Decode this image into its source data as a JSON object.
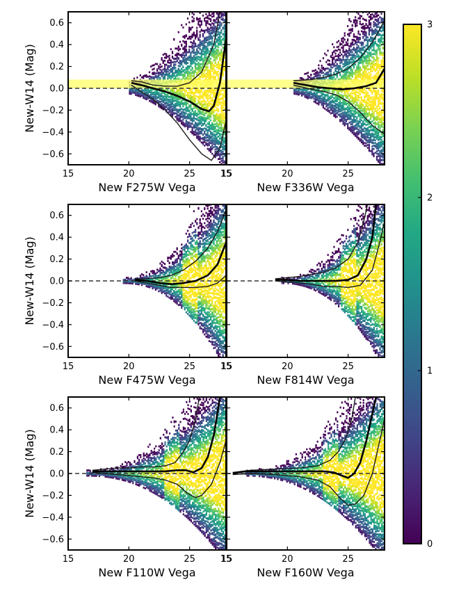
{
  "chart_data": {
    "type": "heatmap",
    "layout": {
      "rows": 3,
      "cols": 2,
      "shared_y": true
    },
    "ylabel": "New-W14 (Mag)",
    "ylim": [
      -0.7,
      0.7
    ],
    "xlim": [
      15,
      28
    ],
    "xticks": [
      15,
      20,
      25
    ],
    "yticks": [
      -0.6,
      -0.4,
      -0.2,
      0.0,
      0.2,
      0.4,
      0.6
    ],
    "ytick_labels": [
      "−0.6",
      "−0.4",
      "−0.2",
      "0.0",
      "0.2",
      "0.4",
      "0.6"
    ],
    "zero_line": {
      "y": 0.0,
      "style": "dashed"
    },
    "colorbar": {
      "range": [
        0,
        3
      ],
      "colormap": "viridis",
      "ticks": [
        0,
        1,
        2,
        3
      ],
      "placement": "right"
    },
    "panels": [
      {
        "xlabel": "New F275W Vega",
        "show_xtick_last": true,
        "data_x_range": [
          20.0,
          28
        ],
        "highlight_band": [
          0.0,
          0.08
        ],
        "percentiles": {
          "median": [
            [
              20.2,
              0.05
            ],
            [
              21,
              0.03
            ],
            [
              22,
              0.0
            ],
            [
              23,
              -0.03
            ],
            [
              24,
              -0.07
            ],
            [
              25,
              -0.12
            ],
            [
              26,
              -0.19
            ],
            [
              26.6,
              -0.21
            ],
            [
              27,
              -0.16
            ],
            [
              27.5,
              0.05
            ],
            [
              28,
              0.45
            ]
          ],
          "upper": [
            [
              20.2,
              0.07
            ],
            [
              21,
              0.06
            ],
            [
              22,
              0.03
            ],
            [
              23,
              0.02
            ],
            [
              24,
              0.02
            ],
            [
              25,
              0.05
            ],
            [
              26,
              0.15
            ],
            [
              27,
              0.4
            ],
            [
              27.5,
              0.7
            ]
          ],
          "lower": [
            [
              20.2,
              0.03
            ],
            [
              21,
              -0.03
            ],
            [
              22,
              -0.1
            ],
            [
              23,
              -0.2
            ],
            [
              24,
              -0.32
            ],
            [
              25,
              -0.47
            ],
            [
              26,
              -0.6
            ],
            [
              26.8,
              -0.66
            ],
            [
              27.5,
              -0.55
            ],
            [
              28,
              -0.3
            ]
          ]
        }
      },
      {
        "xlabel": "New F336W Vega",
        "show_xtick_last": false,
        "data_x_range": [
          20.5,
          28
        ],
        "highlight_band": [
          0.0,
          0.08
        ],
        "percentiles": {
          "median": [
            [
              20.5,
              0.05
            ],
            [
              21.5,
              0.03
            ],
            [
              22.5,
              0.01
            ],
            [
              23.5,
              0.0
            ],
            [
              24.5,
              -0.01
            ],
            [
              25.5,
              0.0
            ],
            [
              26.5,
              0.02
            ],
            [
              27.3,
              0.05
            ],
            [
              28,
              0.18
            ]
          ],
          "upper": [
            [
              20.5,
              0.07
            ],
            [
              22,
              0.08
            ],
            [
              23,
              0.1
            ],
            [
              24,
              0.13
            ],
            [
              25,
              0.18
            ],
            [
              26,
              0.28
            ],
            [
              27,
              0.42
            ],
            [
              28,
              0.62
            ]
          ],
          "lower": [
            [
              20.5,
              0.03
            ],
            [
              22,
              -0.01
            ],
            [
              23,
              -0.03
            ],
            [
              24,
              -0.06
            ],
            [
              25,
              -0.12
            ],
            [
              26,
              -0.22
            ],
            [
              27,
              -0.34
            ],
            [
              28,
              -0.42
            ]
          ]
        }
      },
      {
        "xlabel": "New F475W Vega",
        "show_xtick_last": true,
        "data_x_range": [
          15,
          28
        ],
        "percentiles": {
          "median": [
            [
              20.5,
              0.01
            ],
            [
              21.5,
              0.0
            ],
            [
              22.5,
              -0.02
            ],
            [
              23.5,
              -0.03
            ],
            [
              24.5,
              -0.02
            ],
            [
              25.5,
              0.0
            ],
            [
              26.5,
              0.05
            ],
            [
              27.3,
              0.15
            ],
            [
              28,
              0.35
            ]
          ],
          "upper": [
            [
              20.5,
              0.02
            ],
            [
              21.5,
              0.02
            ],
            [
              22.5,
              0.03
            ],
            [
              23.5,
              0.05
            ],
            [
              24.5,
              0.1
            ],
            [
              25.5,
              0.18
            ],
            [
              26.5,
              0.3
            ],
            [
              27.3,
              0.45
            ],
            [
              28,
              0.65
            ]
          ],
          "lower": [
            [
              20.5,
              0.0
            ],
            [
              21.5,
              -0.02
            ],
            [
              22.5,
              -0.04
            ],
            [
              23.5,
              -0.06
            ],
            [
              24.5,
              -0.06
            ],
            [
              25.5,
              -0.06
            ],
            [
              26.5,
              -0.05
            ],
            [
              27.3,
              -0.02
            ],
            [
              28,
              0.05
            ]
          ]
        }
      },
      {
        "xlabel": "New F814W Vega",
        "show_xtick_last": false,
        "data_x_range": [
          15,
          28
        ],
        "percentiles": {
          "median": [
            [
              19,
              0.01
            ],
            [
              20,
              0.01
            ],
            [
              21,
              0.0
            ],
            [
              22,
              0.0
            ],
            [
              23,
              0.0
            ],
            [
              24,
              0.0
            ],
            [
              25,
              0.01
            ],
            [
              25.8,
              0.05
            ],
            [
              26.5,
              0.2
            ],
            [
              27,
              0.4
            ],
            [
              27.3,
              0.7
            ]
          ],
          "upper": [
            [
              19,
              0.02
            ],
            [
              20,
              0.03
            ],
            [
              21,
              0.04
            ],
            [
              22,
              0.06
            ],
            [
              23,
              0.08
            ],
            [
              24,
              0.12
            ],
            [
              25,
              0.2
            ],
            [
              25.8,
              0.35
            ],
            [
              26.3,
              0.55
            ],
            [
              26.6,
              0.7
            ]
          ],
          "lower": [
            [
              19,
              0.0
            ],
            [
              20,
              -0.01
            ],
            [
              21,
              -0.02
            ],
            [
              22,
              -0.03
            ],
            [
              23,
              -0.05
            ],
            [
              24,
              -0.05
            ],
            [
              25,
              -0.06
            ],
            [
              26,
              -0.04
            ],
            [
              27,
              0.1
            ],
            [
              27.6,
              0.35
            ],
            [
              28,
              0.55
            ]
          ]
        }
      },
      {
        "xlabel": "New F110W Vega",
        "show_xtick_last": true,
        "data_x_range": [
          15,
          28
        ],
        "percentiles": {
          "median": [
            [
              17,
              0.02
            ],
            [
              18,
              0.02
            ],
            [
              19,
              0.02
            ],
            [
              20,
              0.02
            ],
            [
              21,
              0.02
            ],
            [
              22,
              0.02
            ],
            [
              23,
              0.02
            ],
            [
              24,
              0.03
            ],
            [
              24.7,
              0.03
            ],
            [
              25.3,
              0.01
            ],
            [
              26,
              0.05
            ],
            [
              26.5,
              0.15
            ],
            [
              27,
              0.35
            ],
            [
              27.5,
              0.7
            ]
          ],
          "upper": [
            [
              17,
              0.03
            ],
            [
              18,
              0.04
            ],
            [
              19,
              0.05
            ],
            [
              20,
              0.05
            ],
            [
              21,
              0.06
            ],
            [
              22,
              0.06
            ],
            [
              23,
              0.07
            ],
            [
              23.8,
              0.1
            ],
            [
              24.5,
              0.2
            ],
            [
              25,
              0.3
            ],
            [
              25.5,
              0.5
            ],
            [
              25.8,
              0.7
            ]
          ],
          "lower": [
            [
              17,
              0.01
            ],
            [
              18,
              0.0
            ],
            [
              19,
              -0.01
            ],
            [
              20,
              -0.02
            ],
            [
              21,
              -0.03
            ],
            [
              22,
              -0.04
            ],
            [
              23,
              -0.06
            ],
            [
              24,
              -0.1
            ],
            [
              24.8,
              -0.18
            ],
            [
              25.5,
              -0.22
            ],
            [
              26,
              -0.2
            ],
            [
              26.8,
              -0.1
            ],
            [
              27.5,
              0.1
            ],
            [
              28,
              0.3
            ]
          ]
        }
      },
      {
        "xlabel": "New F160W Vega",
        "show_xtick_last": false,
        "data_x_range": [
          15,
          28
        ],
        "percentiles": {
          "median": [
            [
              15.5,
              0.0
            ],
            [
              16.5,
              0.02
            ],
            [
              18,
              0.02
            ],
            [
              20,
              0.02
            ],
            [
              22,
              0.02
            ],
            [
              23,
              0.02
            ],
            [
              23.8,
              0.01
            ],
            [
              24.5,
              -0.02
            ],
            [
              25,
              -0.04
            ],
            [
              25.5,
              0.0
            ],
            [
              26,
              0.1
            ],
            [
              26.5,
              0.3
            ],
            [
              27,
              0.55
            ],
            [
              27.3,
              0.7
            ]
          ],
          "upper": [
            [
              15.5,
              0.01
            ],
            [
              17,
              0.03
            ],
            [
              19,
              0.04
            ],
            [
              21,
              0.05
            ],
            [
              22.5,
              0.07
            ],
            [
              23.5,
              0.12
            ],
            [
              24.2,
              0.2
            ],
            [
              24.8,
              0.32
            ],
            [
              25.3,
              0.5
            ],
            [
              25.6,
              0.7
            ]
          ],
          "lower": [
            [
              15.5,
              -0.01
            ],
            [
              17,
              0.0
            ],
            [
              19,
              -0.01
            ],
            [
              21,
              -0.03
            ],
            [
              22.5,
              -0.06
            ],
            [
              23.5,
              -0.12
            ],
            [
              24.3,
              -0.22
            ],
            [
              25,
              -0.29
            ],
            [
              25.6,
              -0.28
            ],
            [
              26.3,
              -0.2
            ],
            [
              27,
              0.0
            ],
            [
              27.6,
              0.3
            ],
            [
              28,
              0.5
            ]
          ]
        }
      }
    ]
  }
}
